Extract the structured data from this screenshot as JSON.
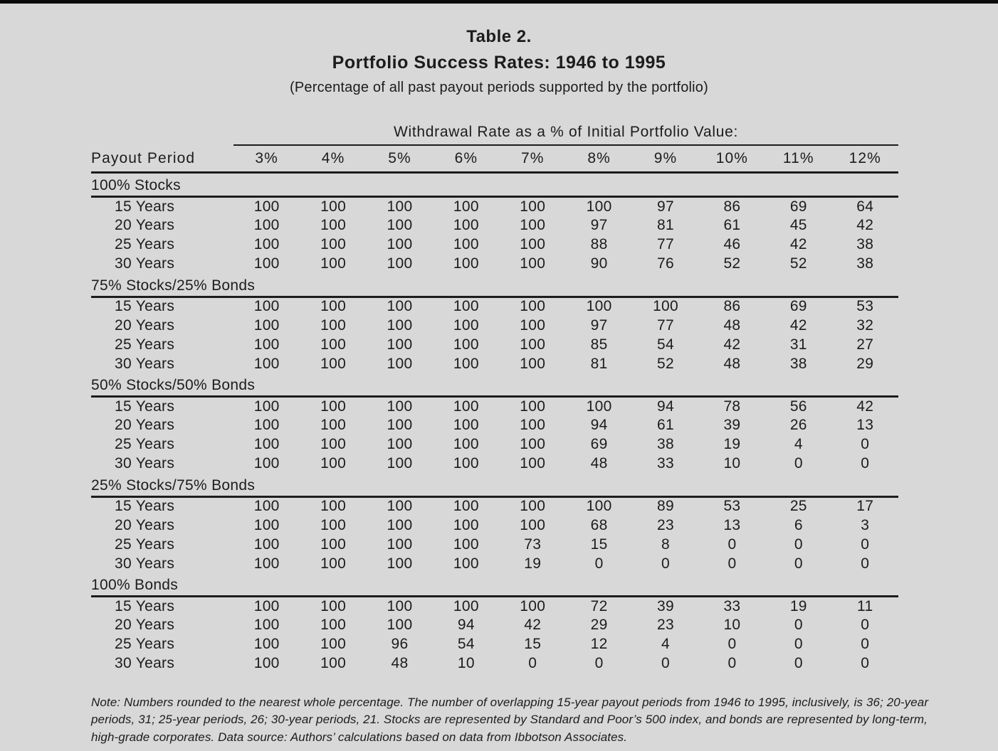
{
  "page": {
    "background_color": "#d8d8d8",
    "top_bar_color": "#0b0b0b",
    "text_color": "#1c1c1c"
  },
  "title": {
    "line1": "Table 2.",
    "line2": "Portfolio Success Rates: 1946 to 1995",
    "line3": "(Percentage of all past payout periods supported by the portfolio)"
  },
  "table": {
    "span_header": "Withdrawal Rate as a % of Initial Portfolio Value:",
    "row_header": "Payout Period",
    "columns": [
      "3%",
      "4%",
      "5%",
      "6%",
      "7%",
      "8%",
      "9%",
      "10%",
      "11%",
      "12%"
    ],
    "sections": [
      {
        "label": "100% Stocks",
        "rows": [
          {
            "label": "15 Years",
            "values": [
              100,
              100,
              100,
              100,
              100,
              100,
              97,
              86,
              69,
              64
            ]
          },
          {
            "label": "20 Years",
            "values": [
              100,
              100,
              100,
              100,
              100,
              97,
              81,
              61,
              45,
              42
            ]
          },
          {
            "label": "25 Years",
            "values": [
              100,
              100,
              100,
              100,
              100,
              88,
              77,
              46,
              42,
              38
            ]
          },
          {
            "label": "30 Years",
            "values": [
              100,
              100,
              100,
              100,
              100,
              90,
              76,
              52,
              52,
              38
            ]
          }
        ]
      },
      {
        "label": "75% Stocks/25% Bonds",
        "rows": [
          {
            "label": "15 Years",
            "values": [
              100,
              100,
              100,
              100,
              100,
              100,
              100,
              86,
              69,
              53
            ]
          },
          {
            "label": "20 Years",
            "values": [
              100,
              100,
              100,
              100,
              100,
              97,
              77,
              48,
              42,
              32
            ]
          },
          {
            "label": "25 Years",
            "values": [
              100,
              100,
              100,
              100,
              100,
              85,
              54,
              42,
              31,
              27
            ]
          },
          {
            "label": "30 Years",
            "values": [
              100,
              100,
              100,
              100,
              100,
              81,
              52,
              48,
              38,
              29
            ]
          }
        ]
      },
      {
        "label": "50% Stocks/50% Bonds",
        "rows": [
          {
            "label": "15 Years",
            "values": [
              100,
              100,
              100,
              100,
              100,
              100,
              94,
              78,
              56,
              42
            ]
          },
          {
            "label": "20 Years",
            "values": [
              100,
              100,
              100,
              100,
              100,
              94,
              61,
              39,
              26,
              13
            ]
          },
          {
            "label": "25 Years",
            "values": [
              100,
              100,
              100,
              100,
              100,
              69,
              38,
              19,
              4,
              0
            ]
          },
          {
            "label": "30 Years",
            "values": [
              100,
              100,
              100,
              100,
              100,
              48,
              33,
              10,
              0,
              0
            ]
          }
        ]
      },
      {
        "label": "25% Stocks/75% Bonds",
        "rows": [
          {
            "label": "15 Years",
            "values": [
              100,
              100,
              100,
              100,
              100,
              100,
              89,
              53,
              25,
              17
            ]
          },
          {
            "label": "20 Years",
            "values": [
              100,
              100,
              100,
              100,
              100,
              68,
              23,
              13,
              6,
              3
            ]
          },
          {
            "label": "25 Years",
            "values": [
              100,
              100,
              100,
              100,
              73,
              15,
              8,
              0,
              0,
              0
            ]
          },
          {
            "label": "30 Years",
            "values": [
              100,
              100,
              100,
              100,
              19,
              0,
              0,
              0,
              0,
              0
            ]
          }
        ]
      },
      {
        "label": "100% Bonds",
        "rows": [
          {
            "label": "15 Years",
            "values": [
              100,
              100,
              100,
              100,
              100,
              72,
              39,
              33,
              19,
              11
            ]
          },
          {
            "label": "20 Years",
            "values": [
              100,
              100,
              100,
              94,
              42,
              29,
              23,
              10,
              0,
              0
            ]
          },
          {
            "label": "25 Years",
            "values": [
              100,
              100,
              96,
              54,
              15,
              12,
              4,
              0,
              0,
              0
            ]
          },
          {
            "label": "30 Years",
            "values": [
              100,
              100,
              48,
              10,
              0,
              0,
              0,
              0,
              0,
              0
            ]
          }
        ]
      }
    ]
  },
  "note": "Note: Numbers rounded to the nearest whole percentage. The number of overlapping 15-year payout periods from 1946 to 1995, inclusively, is 36; 20-year periods, 31; 25-year periods, 26; 30-year periods, 21. Stocks are represented by Standard and Poor’s 500 index, and bonds are represented by long-term, high-grade corporates. Data source: Authors’ calculations based on data from Ibbotson Associates."
}
